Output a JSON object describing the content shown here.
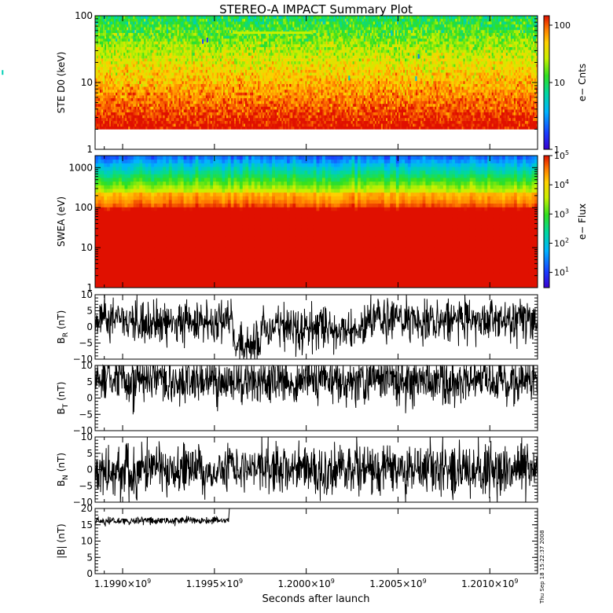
{
  "title": "STEREO-A IMPACT Summary Plot",
  "xlabel": "Seconds after launch",
  "xticks": [
    {
      "mant": "1.1990",
      "exp": "9",
      "value": 1199000000.0
    },
    {
      "mant": "1.1995",
      "exp": "9",
      "value": 1199500000.0
    },
    {
      "mant": "1.2000",
      "exp": "9",
      "value": 1200000000.0
    },
    {
      "mant": "1.2005",
      "exp": "9",
      "value": 1200500000.0
    },
    {
      "mant": "1.2010",
      "exp": "9",
      "value": 1201000000.0
    }
  ],
  "timestamp": "Thu Sep 18 15:22:37 2008",
  "chart_data": [
    {
      "type": "heatmap",
      "name": "ste",
      "ylabel": "STE D0 (keV)",
      "ylog": true,
      "ylim": [
        1,
        100
      ],
      "yticks": [
        "1",
        "10",
        "100"
      ],
      "colorbar": {
        "label": "e− Cnts",
        "log": true,
        "range": [
          1,
          100
        ],
        "ticks": [
          "1",
          "10",
          "100"
        ]
      }
    },
    {
      "type": "heatmap",
      "name": "swea",
      "ylabel": "SWEA (eV)",
      "ylog": true,
      "ylim": [
        1,
        2000
      ],
      "yticks": [
        "1",
        "10",
        "100",
        "1000"
      ],
      "colorbar": {
        "label": "e− Flux",
        "log": true,
        "range": [
          3,
          100000
        ],
        "ticks": [
          {
            "mant": "10",
            "exp": "1"
          },
          {
            "mant": "10",
            "exp": "2"
          },
          {
            "mant": "10",
            "exp": "3"
          },
          {
            "mant": "10",
            "exp": "4"
          },
          {
            "mant": "10",
            "exp": "5"
          }
        ]
      }
    },
    {
      "type": "line",
      "name": "br",
      "ylabel": {
        "main": "B",
        "sub": "R",
        "unit": " (nT)"
      },
      "ylim": [
        -10,
        10
      ],
      "yticks": [
        "10",
        "5",
        "0",
        "−5",
        "−10"
      ]
    },
    {
      "type": "line",
      "name": "bt",
      "ylabel": {
        "main": "B",
        "sub": "T",
        "unit": " (nT)"
      },
      "ylim": [
        -10,
        10
      ],
      "yticks": [
        "10",
        "5",
        "0",
        "−5",
        "−10"
      ]
    },
    {
      "type": "line",
      "name": "bn",
      "ylabel": {
        "main": "B",
        "sub": "N",
        "unit": " (nT)"
      },
      "ylim": [
        -10,
        10
      ],
      "yticks": [
        "10",
        "5",
        "0",
        "−5",
        "−10"
      ]
    },
    {
      "type": "line",
      "name": "bmag",
      "ylabel": {
        "main": "|B|",
        "sub": "",
        "unit": " (nT)"
      },
      "ylim": [
        0,
        20
      ],
      "yticks": [
        "20",
        "15",
        "10",
        "5",
        "0"
      ]
    }
  ]
}
